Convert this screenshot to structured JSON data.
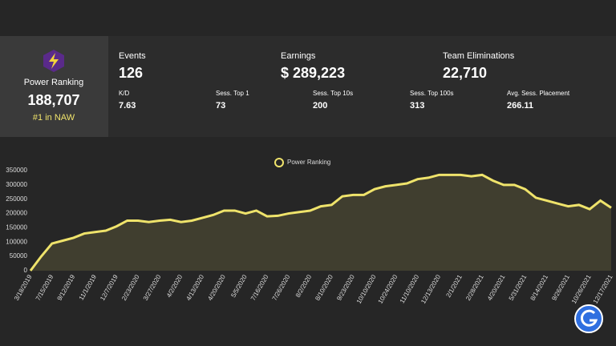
{
  "stats": {
    "power_ranking": {
      "label": "Power Ranking",
      "value": "188,707",
      "rank": "#1 in NAW"
    },
    "main": [
      {
        "label": "Events",
        "value": "126"
      },
      {
        "label": "Earnings",
        "value": "$ 289,223"
      },
      {
        "label": "Team Eliminations",
        "value": "22,710"
      }
    ],
    "secondary": [
      {
        "label": "K/D",
        "value": "7.63"
      },
      {
        "label": "Sess. Top 1",
        "value": "73"
      },
      {
        "label": "Sess. Top 10s",
        "value": "200"
      },
      {
        "label": "Sess. Top 100s",
        "value": "313"
      },
      {
        "label": "Avg. Sess. Placement",
        "value": "266.11"
      }
    ]
  },
  "chart_data": {
    "type": "line",
    "legend": "top",
    "categories": [
      "3/18/2019",
      null,
      "7/15/2019",
      null,
      "9/12/2019",
      null,
      "11/1/2019",
      null,
      "12/7/2019",
      null,
      "2/23/2020",
      null,
      "3/27/2020",
      null,
      "4/2/2020",
      null,
      "4/13/2020",
      null,
      "4/20/2020",
      null,
      "5/5/2020",
      null,
      "7/16/2020",
      null,
      "7/26/2020",
      null,
      "8/2/2020",
      null,
      "8/10/2020",
      null,
      "9/23/2020",
      null,
      "10/10/2020",
      null,
      "10/24/2020",
      null,
      "11/10/2020",
      null,
      "12/13/2020",
      null,
      "2/1/2021",
      null,
      "2/28/2021",
      null,
      "4/20/2021",
      null,
      "5/31/2021",
      null,
      "8/14/2021",
      null,
      "9/26/2021",
      null,
      "10/26/2021",
      null,
      "12/17/2021"
    ],
    "series": [
      {
        "name": "Power Ranking",
        "color": "#efe36b",
        "values": [
          0,
          50000,
          95000,
          105000,
          115000,
          130000,
          135000,
          140000,
          155000,
          175000,
          175000,
          170000,
          175000,
          178000,
          170000,
          175000,
          185000,
          195000,
          210000,
          210000,
          200000,
          210000,
          190000,
          192000,
          200000,
          205000,
          210000,
          225000,
          230000,
          260000,
          265000,
          265000,
          285000,
          295000,
          300000,
          305000,
          320000,
          325000,
          335000,
          335000,
          335000,
          330000,
          335000,
          315000,
          300000,
          300000,
          285000,
          255000,
          245000,
          235000,
          225000,
          230000,
          215000,
          245000,
          220000
        ]
      }
    ],
    "ylim": [
      0,
      360000
    ],
    "yticks": [
      0,
      50000,
      100000,
      150000,
      200000,
      250000,
      300000,
      350000
    ]
  }
}
